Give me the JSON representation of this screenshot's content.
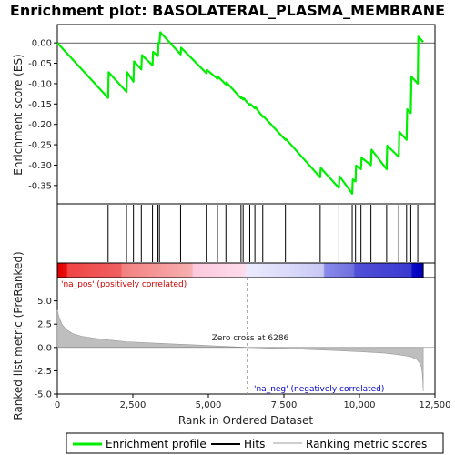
{
  "chart_data": {
    "type": "line",
    "title": "Enrichment plot: BASOLATERAL_PLASMA_MEMBRANE",
    "xlabel": "Rank in Ordered Dataset",
    "top_panel": {
      "ylabel": "Enrichment score (ES)",
      "xlim": [
        0,
        12500
      ],
      "ylim": [
        -0.395,
        0.045
      ],
      "yticks": [
        0.0,
        -0.05,
        -0.1,
        -0.15,
        -0.2,
        -0.25,
        -0.3,
        -0.35
      ],
      "ytick_labels": [
        "0.00",
        "-0.05",
        "-0.10",
        "-0.15",
        "-0.20",
        "-0.25",
        "-0.30",
        "-0.35"
      ],
      "series": [
        {
          "name": "Enrichment profile",
          "color": "#00ee00",
          "x": [
            0,
            1680,
            1700,
            2290,
            2310,
            2520,
            2540,
            2780,
            2800,
            3150,
            3170,
            3330,
            3350,
            3380,
            3410,
            4080,
            4100,
            4930,
            4950,
            5300,
            5320,
            5580,
            5600,
            6080,
            6100,
            6150,
            6170,
            6370,
            6390,
            6540,
            6560,
            6800,
            6820,
            7550,
            7570,
            8700,
            8720,
            9320,
            9340,
            9760,
            9780,
            9870,
            9890,
            10050,
            10070,
            10380,
            10400,
            10900,
            10920,
            11300,
            11320,
            11560,
            11580,
            11700,
            11720,
            11930,
            11950,
            12110
          ],
          "y": [
            0.0,
            -0.135,
            -0.072,
            -0.12,
            -0.072,
            -0.095,
            -0.045,
            -0.065,
            -0.03,
            -0.055,
            -0.022,
            -0.032,
            0.0,
            0.0,
            0.026,
            -0.028,
            -0.012,
            -0.074,
            -0.066,
            -0.088,
            -0.083,
            -0.102,
            -0.097,
            -0.136,
            -0.134,
            -0.139,
            -0.136,
            -0.153,
            -0.15,
            -0.161,
            -0.158,
            -0.182,
            -0.18,
            -0.238,
            -0.236,
            -0.33,
            -0.307,
            -0.356,
            -0.327,
            -0.37,
            -0.335,
            -0.34,
            -0.301,
            -0.31,
            -0.282,
            -0.3,
            -0.262,
            -0.31,
            -0.252,
            -0.28,
            -0.218,
            -0.238,
            -0.163,
            -0.172,
            -0.083,
            -0.1,
            0.015,
            0.002
          ]
        }
      ]
    },
    "hits": {
      "name": "Hits",
      "positions": [
        1680,
        2290,
        2520,
        2780,
        3150,
        3330,
        3380,
        4080,
        4930,
        5300,
        5580,
        6080,
        6150,
        6370,
        6540,
        6800,
        7550,
        8700,
        9320,
        9760,
        9870,
        10050,
        10380,
        10900,
        11300,
        11560,
        11700,
        11930
      ]
    },
    "bottom_panel": {
      "ylabel": "Ranked list metric (PreRanked)",
      "xlim": [
        0,
        12500
      ],
      "ylim": [
        -5.0,
        7.5
      ],
      "yticks": [
        5.0,
        2.5,
        0.0,
        -2.5,
        -5.0
      ],
      "ytick_labels": [
        "5.0",
        "2.5",
        "0.0",
        "-2.5",
        "-5.0"
      ],
      "xticks": [
        0,
        2500,
        5000,
        7500,
        10000,
        12500
      ],
      "xtick_labels": [
        "0",
        "2,500",
        "5,000",
        "7,500",
        "10,000",
        "12,500"
      ],
      "series": [
        {
          "name": "Ranking metric scores",
          "color": "#bebebe",
          "x": [
            0,
            50,
            150,
            300,
            500,
            800,
            1200,
            1700,
            2300,
            3000,
            3800,
            4600,
            5400,
            6000,
            6286,
            7000,
            8000,
            9000,
            10000,
            10800,
            11300,
            11700,
            11900,
            12000,
            12050,
            12080,
            12100,
            12110
          ],
          "y": [
            4.0,
            3.3,
            2.5,
            1.9,
            1.5,
            1.2,
            1.0,
            0.8,
            0.62,
            0.5,
            0.38,
            0.26,
            0.14,
            0.05,
            0.0,
            -0.08,
            -0.18,
            -0.3,
            -0.45,
            -0.6,
            -0.78,
            -1.0,
            -1.3,
            -1.7,
            -2.1,
            -2.8,
            -3.8,
            -4.7
          ]
        }
      ],
      "zero_cross_label": "Zero cross at 6286",
      "pos_label": "'na_pos' (positively correlated)",
      "neg_label": "'na_neg' (negatively correlated)",
      "pos_label_color": "#cc0000",
      "neg_label_color": "#0000cc"
    },
    "heat_bar": {
      "stops": [
        {
          "x": 0,
          "color": "#d90000"
        },
        {
          "x": 300,
          "color": "#ee1010"
        },
        {
          "x": 350,
          "color": "#f04545"
        },
        {
          "x": 2100,
          "color": "#f06060"
        },
        {
          "x": 2150,
          "color": "#f38080"
        },
        {
          "x": 4450,
          "color": "#f7b0b0"
        },
        {
          "x": 4500,
          "color": "#fcc8dc"
        },
        {
          "x": 6200,
          "color": "#fddcec"
        },
        {
          "x": 6300,
          "color": "#ebebff"
        },
        {
          "x": 7500,
          "color": "#dcdcfa"
        },
        {
          "x": 8800,
          "color": "#c8c8f4"
        },
        {
          "x": 8850,
          "color": "#8a8aea"
        },
        {
          "x": 9800,
          "color": "#7070e0"
        },
        {
          "x": 9850,
          "color": "#5050d8"
        },
        {
          "x": 11700,
          "color": "#3a3ad0"
        },
        {
          "x": 11750,
          "color": "#0a0ac8"
        },
        {
          "x": 12110,
          "color": "#0000b8"
        }
      ]
    },
    "legend": {
      "placement": "bottom",
      "entries": [
        {
          "label": "Enrichment profile",
          "color": "#00ee00"
        },
        {
          "label": "Hits",
          "color": "#000000"
        },
        {
          "label": "Ranking metric scores",
          "color": "#bebebe"
        }
      ]
    }
  }
}
